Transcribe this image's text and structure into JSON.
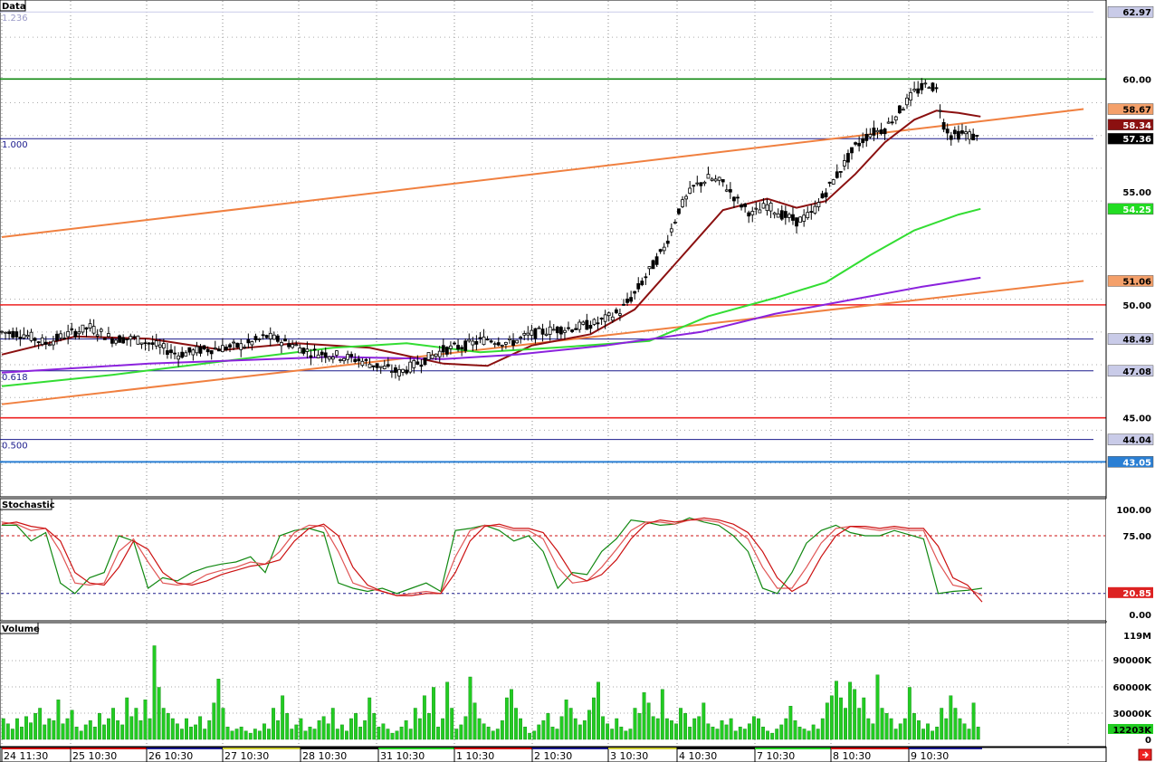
{
  "panes": {
    "price": {
      "title": "Data"
    },
    "stochastic": {
      "title": "Stochastic"
    },
    "volume": {
      "title": "Volume"
    }
  },
  "price_axis_labels": [
    {
      "text": "62.97",
      "bg": "#c9cbe8",
      "fg": "#000000"
    },
    {
      "text": "60.00",
      "bg": "#ffffff",
      "fg": "#000000"
    },
    {
      "text": "58.67",
      "bg": "#f4a06a",
      "fg": "#000000"
    },
    {
      "text": "58.34",
      "bg": "#8b1010",
      "fg": "#ffffff"
    },
    {
      "text": "57.36",
      "bg": "#000000",
      "fg": "#ffffff"
    },
    {
      "text": "55.00",
      "bg": "#ffffff",
      "fg": "#000000"
    },
    {
      "text": "54.25",
      "bg": "#22dd22",
      "fg": "#ffffff"
    },
    {
      "text": "51.06",
      "bg": "#f4a06a",
      "fg": "#000000"
    },
    {
      "text": "50.00",
      "bg": "#ffffff",
      "fg": "#000000"
    },
    {
      "text": "48.49",
      "bg": "#c9cbe8",
      "fg": "#000000"
    },
    {
      "text": "47.08",
      "bg": "#c9cbe8",
      "fg": "#000000"
    },
    {
      "text": "45.00",
      "bg": "#ffffff",
      "fg": "#000000"
    },
    {
      "text": "44.04",
      "bg": "#c9cbe8",
      "fg": "#000000"
    },
    {
      "text": "43.05",
      "bg": "#2a7fd4",
      "fg": "#ffffff"
    }
  ],
  "stochastic_axis_labels": [
    {
      "text": "100.00",
      "bg": "#ffffff",
      "fg": "#000000"
    },
    {
      "text": "75.00",
      "bg": "#ffffff",
      "fg": "#000000"
    },
    {
      "text": "20.85",
      "bg": "#dd2222",
      "fg": "#ffffff"
    },
    {
      "text": "0.00",
      "bg": "#ffffff",
      "fg": "#000000"
    }
  ],
  "volume_axis_labels": [
    {
      "text": "119M",
      "bg": "#ffffff",
      "fg": "#000000"
    },
    {
      "text": "90000K",
      "bg": "#ffffff",
      "fg": "#000000"
    },
    {
      "text": "60000K",
      "bg": "#ffffff",
      "fg": "#000000"
    },
    {
      "text": "30000K",
      "bg": "#ffffff",
      "fg": "#000000"
    },
    {
      "text": "12203K",
      "bg": "#22cc22",
      "fg": "#000000"
    },
    {
      "text": "0",
      "bg": "#ffffff",
      "fg": "#000000"
    }
  ],
  "fib_labels": [
    "1.236",
    "1.000",
    "0.618",
    "0.500"
  ],
  "date_labels": [
    "24 11:30",
    "25 10:30",
    "26 10:30",
    "27 10:30",
    "28 10:30",
    "31 10:30",
    "1 10:30",
    "2 10:30",
    "3 10:30",
    "4 10:30",
    "7 10:30",
    "8 10:30",
    "9 10:30"
  ],
  "colors": {
    "ma_fast": "#8b1010",
    "ma_mid": "#33dd33",
    "ma_slow": "#8b22dd",
    "trendline": "#f08040",
    "resistance": "#ee2222",
    "target": "#118811",
    "fib": "#1a1a8c",
    "volume_bar": "#22cc22"
  },
  "chart_data": [
    {
      "type": "candlestick",
      "title": "Data",
      "session_labels": [
        "24 11:30",
        "25 10:30",
        "26 10:30",
        "27 10:30",
        "28 10:30",
        "31 10:30",
        "1 10:30",
        "2 10:30",
        "3 10:30",
        "4 10:30",
        "7 10:30",
        "8 10:30",
        "9 10:30"
      ],
      "ylim": [
        41.5,
        63.5
      ],
      "grid": true,
      "close_path": [
        [
          0,
          48.8
        ],
        [
          3,
          48.7
        ],
        [
          6,
          48.3
        ],
        [
          9,
          48.7
        ],
        [
          12,
          49.0
        ],
        [
          15,
          48.5
        ],
        [
          18,
          48.5
        ],
        [
          21,
          48.2
        ],
        [
          24,
          47.8
        ],
        [
          27,
          48.0
        ],
        [
          30,
          48.1
        ],
        [
          33,
          48.2
        ],
        [
          36,
          48.6
        ],
        [
          39,
          48.3
        ],
        [
          42,
          47.9
        ],
        [
          45,
          47.8
        ],
        [
          48,
          47.6
        ],
        [
          51,
          47.3
        ],
        [
          54,
          47.0
        ],
        [
          57,
          47.5
        ],
        [
          60,
          48.0
        ],
        [
          63,
          48.2
        ],
        [
          66,
          48.5
        ],
        [
          69,
          48.3
        ],
        [
          72,
          48.7
        ],
        [
          75,
          48.9
        ],
        [
          78,
          49.0
        ],
        [
          81,
          49.2
        ],
        [
          84,
          49.7
        ],
        [
          86,
          50.5
        ],
        [
          88,
          51.5
        ],
        [
          90,
          52.5
        ],
        [
          92,
          54.2
        ],
        [
          94,
          55.2
        ],
        [
          96,
          55.6
        ],
        [
          98,
          55.4
        ],
        [
          100,
          54.6
        ],
        [
          102,
          54.0
        ],
        [
          104,
          54.4
        ],
        [
          106,
          54.0
        ],
        [
          108,
          53.7
        ],
        [
          110,
          54.0
        ],
        [
          112,
          55.0
        ],
        [
          114,
          56.0
        ],
        [
          116,
          57.0
        ],
        [
          118,
          57.6
        ],
        [
          120,
          57.8
        ],
        [
          122,
          58.6
        ],
        [
          124,
          59.4
        ],
        [
          126,
          59.8
        ],
        [
          127,
          59.5
        ],
        [
          128,
          58.0
        ],
        [
          129,
          57.5
        ],
        [
          131,
          57.6
        ],
        [
          133,
          57.3
        ]
      ],
      "moving_averages": [
        {
          "label": "",
          "color": "#8b1010",
          "points": [
            [
              0,
              47.8
            ],
            [
              10,
              48.6
            ],
            [
              20,
              48.5
            ],
            [
              30,
              48.0
            ],
            [
              40,
              48.3
            ],
            [
              50,
              48.1
            ],
            [
              60,
              47.4
            ],
            [
              66,
              47.3
            ],
            [
              72,
              48.2
            ],
            [
              80,
              48.7
            ],
            [
              86,
              49.8
            ],
            [
              92,
              52.0
            ],
            [
              98,
              54.2
            ],
            [
              104,
              54.7
            ],
            [
              108,
              54.3
            ],
            [
              112,
              54.6
            ],
            [
              116,
              55.8
            ],
            [
              120,
              57.2
            ],
            [
              124,
              58.2
            ],
            [
              127,
              58.6
            ],
            [
              130,
              58.5
            ],
            [
              133,
              58.34
            ]
          ],
          "last": 58.34
        },
        {
          "label": "",
          "color": "#33dd33",
          "points": [
            [
              0,
              46.4
            ],
            [
              15,
              46.9
            ],
            [
              30,
              47.5
            ],
            [
              45,
              48.1
            ],
            [
              55,
              48.3
            ],
            [
              65,
              47.9
            ],
            [
              75,
              48.1
            ],
            [
              88,
              48.4
            ],
            [
              96,
              49.5
            ],
            [
              105,
              50.3
            ],
            [
              112,
              51.0
            ],
            [
              118,
              52.2
            ],
            [
              124,
              53.3
            ],
            [
              130,
              54.0
            ],
            [
              133,
              54.25
            ]
          ],
          "last": 54.25
        },
        {
          "label": "",
          "color": "#8b22dd",
          "points": [
            [
              0,
              47.0
            ],
            [
              20,
              47.4
            ],
            [
              45,
              47.7
            ],
            [
              60,
              47.6
            ],
            [
              70,
              47.8
            ],
            [
              82,
              48.2
            ],
            [
              95,
              48.8
            ],
            [
              105,
              49.6
            ],
            [
              115,
              50.2
            ],
            [
              125,
              50.8
            ],
            [
              133,
              51.2
            ]
          ],
          "last": 51.2
        }
      ],
      "trendlines": [
        {
          "color": "#f08040",
          "from": [
            0,
            53.0
          ],
          "to": [
            147,
            58.67
          ],
          "label": "58.67"
        },
        {
          "color": "#f08040",
          "from": [
            0,
            45.6
          ],
          "to": [
            147,
            51.06
          ],
          "label": "51.06"
        }
      ],
      "horizontal_levels": [
        {
          "value": 60.0,
          "color": "#118811",
          "label": "60.00"
        },
        {
          "value": 50.0,
          "color": "#ee2222",
          "label": "50.00"
        },
        {
          "value": 45.0,
          "color": "#ee2222",
          "label": "45.00"
        },
        {
          "value": 43.05,
          "color": "#2a7fd4",
          "label": "43.05"
        }
      ],
      "fibonacci": [
        {
          "ratio": "1.236",
          "value": 62.97
        },
        {
          "ratio": "1.000",
          "value": 57.36
        },
        {
          "ratio": "0.618",
          "value": 47.08
        },
        {
          "ratio": "0.500",
          "value": 44.04
        }
      ],
      "extra_levels": [
        {
          "value": 48.49,
          "color": "#1a1a8c"
        }
      ],
      "last_price": 57.36
    },
    {
      "type": "line",
      "title": "Stochastic",
      "ylim": [
        0,
        100
      ],
      "overbought": 75,
      "oversold": 20.85,
      "series": [
        {
          "color": "#118811",
          "values": [
            85,
            85,
            70,
            78,
            30,
            20,
            35,
            40,
            75,
            70,
            25,
            35,
            32,
            40,
            45,
            48,
            50,
            55,
            40,
            75,
            80,
            82,
            78,
            30,
            25,
            22,
            25,
            20,
            25,
            30,
            22,
            80,
            82,
            85,
            80,
            70,
            75,
            60,
            25,
            40,
            38,
            60,
            72,
            90,
            88,
            85,
            86,
            92,
            88,
            85,
            75,
            60,
            25,
            20,
            40,
            68,
            80,
            85,
            78,
            75,
            75,
            80,
            76,
            72,
            20,
            22,
            23,
            25
          ]
        },
        {
          "color": "#e05555",
          "values": [
            88,
            86,
            80,
            82,
            60,
            30,
            28,
            30,
            60,
            72,
            50,
            30,
            28,
            30,
            38,
            42,
            45,
            50,
            48,
            60,
            78,
            85,
            84,
            60,
            30,
            25,
            22,
            18,
            20,
            22,
            20,
            55,
            80,
            85,
            84,
            80,
            80,
            72,
            45,
            30,
            32,
            45,
            62,
            80,
            88,
            88,
            86,
            90,
            90,
            88,
            82,
            72,
            45,
            25,
            25,
            45,
            68,
            82,
            84,
            82,
            80,
            82,
            80,
            80,
            50,
            28,
            25,
            18
          ]
        },
        {
          "color": "#cc1111",
          "values": [
            86,
            88,
            84,
            82,
            70,
            40,
            30,
            28,
            45,
            70,
            62,
            40,
            30,
            28,
            32,
            38,
            42,
            46,
            48,
            52,
            70,
            82,
            86,
            75,
            45,
            28,
            22,
            18,
            18,
            20,
            20,
            40,
            70,
            84,
            86,
            82,
            82,
            78,
            60,
            38,
            32,
            38,
            52,
            72,
            86,
            90,
            88,
            90,
            92,
            90,
            86,
            78,
            60,
            35,
            22,
            30,
            55,
            75,
            84,
            84,
            82,
            84,
            82,
            82,
            65,
            35,
            28,
            12
          ]
        }
      ]
    },
    {
      "type": "bar",
      "title": "Volume",
      "ylim": [
        0,
        119000000
      ],
      "last_value": 12203000,
      "values": [
        20,
        15,
        10,
        20,
        12,
        22,
        16,
        25,
        30,
        14,
        20,
        18,
        38,
        15,
        20,
        28,
        12,
        8,
        14,
        18,
        12,
        25,
        14,
        20,
        30,
        18,
        14,
        40,
        22,
        30,
        18,
        38,
        20,
        90,
        50,
        30,
        25,
        20,
        15,
        10,
        20,
        12,
        14,
        22,
        10,
        18,
        35,
        58,
        30,
        12,
        8,
        10,
        12,
        8,
        6,
        10,
        8,
        15,
        10,
        30,
        18,
        42,
        25,
        10,
        14,
        20,
        8,
        12,
        10,
        18,
        22,
        15,
        30,
        10,
        14,
        8,
        20,
        25,
        12,
        18,
        40,
        25,
        12,
        15,
        10,
        6,
        8,
        12,
        18,
        10,
        30,
        20,
        42,
        25,
        50,
        12,
        20,
        55,
        30,
        10,
        14,
        22,
        60,
        35,
        20,
        15,
        12,
        8,
        10,
        18,
        40,
        48,
        30,
        20,
        12,
        6,
        8,
        14,
        18,
        25,
        12,
        10,
        22,
        38,
        30,
        20,
        14,
        18,
        28,
        40,
        55,
        22,
        15,
        10,
        20,
        12,
        8,
        10,
        30,
        25,
        45,
        35,
        22,
        20,
        48,
        20,
        18,
        15,
        30,
        25,
        12,
        20,
        22,
        35,
        15,
        12,
        10,
        18,
        14,
        20,
        8,
        12,
        10,
        15,
        22,
        20,
        12,
        8,
        6,
        10,
        14,
        20,
        32,
        18,
        12,
        10,
        8,
        14,
        10,
        20,
        35,
        42,
        56,
        40,
        30,
        55,
        48,
        30,
        40,
        20,
        15,
        62,
        30,
        25,
        20,
        10,
        15,
        20,
        50,
        25,
        18,
        10,
        15,
        8,
        12,
        30,
        20,
        42,
        30,
        20,
        15,
        10,
        35,
        12
      ]
    }
  ]
}
